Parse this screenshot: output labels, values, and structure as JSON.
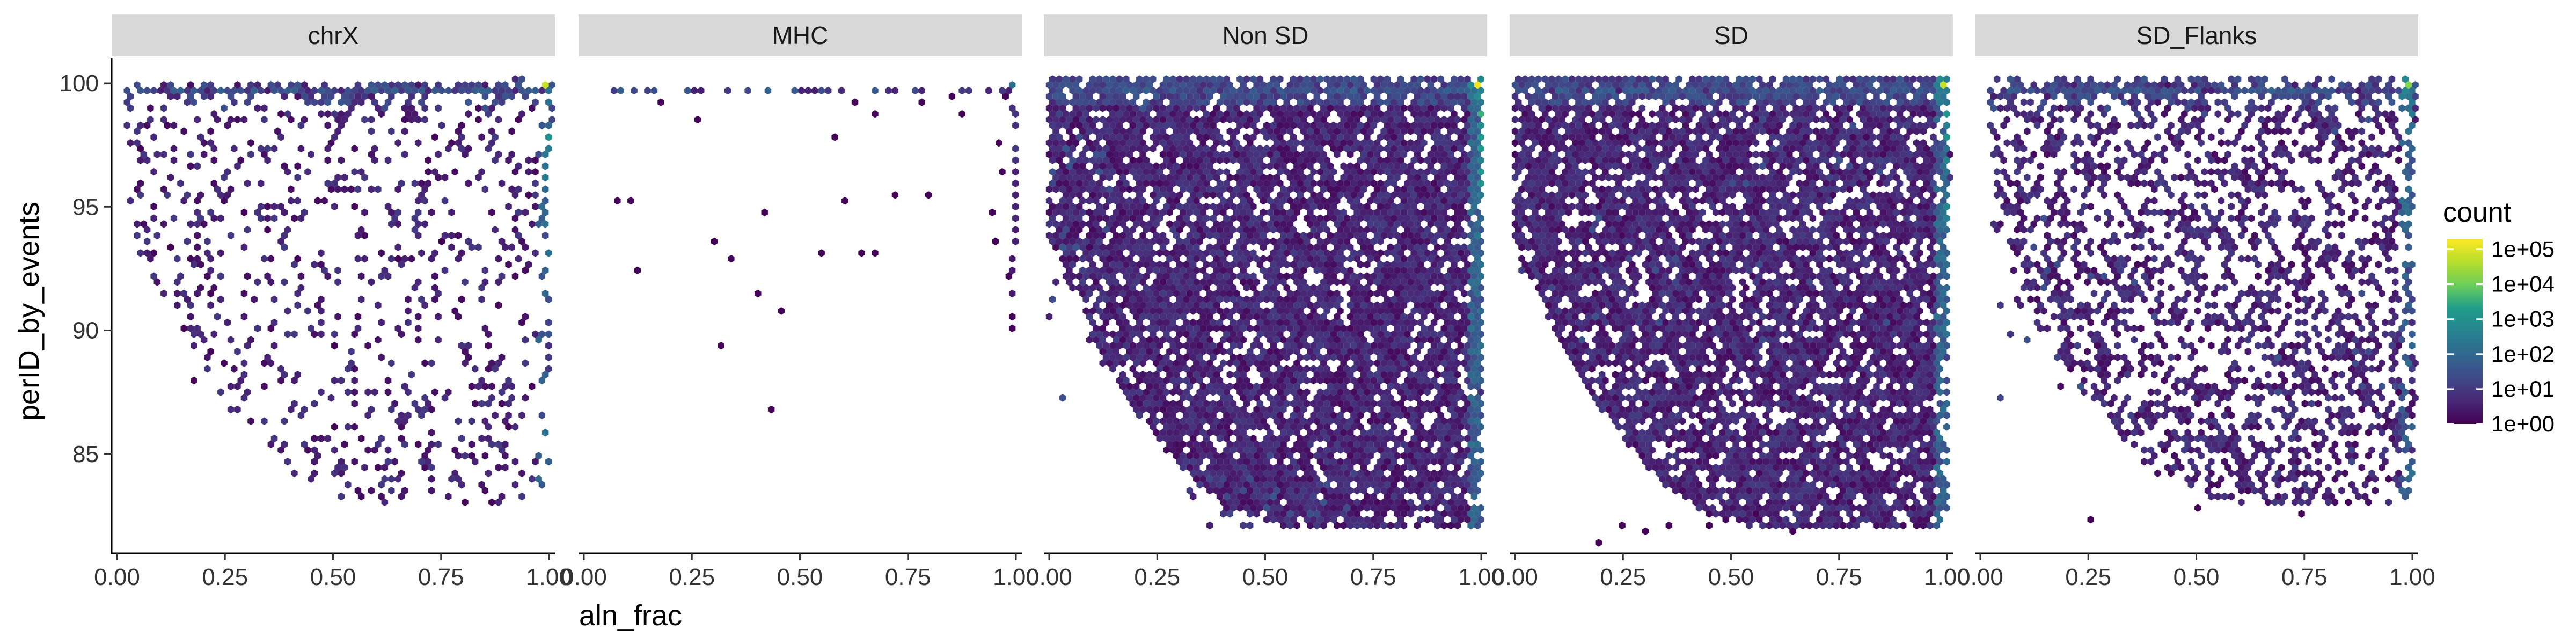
{
  "chart_data": {
    "type": "hexbin",
    "xlabel": "aln_frac",
    "ylabel": "perID_by_events",
    "xlim": [
      0,
      1
    ],
    "ylim": [
      81,
      101
    ],
    "x_ticks": [
      {
        "value": 0,
        "label": "0.00"
      },
      {
        "value": 0.25,
        "label": "0.25"
      },
      {
        "value": 0.5,
        "label": "0.50"
      },
      {
        "value": 0.75,
        "label": "0.75"
      },
      {
        "value": 1,
        "label": "1.00"
      }
    ],
    "y_ticks": [
      {
        "value": 85,
        "label": "85"
      },
      {
        "value": 90,
        "label": "90"
      },
      {
        "value": 95,
        "label": "95"
      },
      {
        "value": 100,
        "label": "100"
      }
    ],
    "facets": [
      {
        "label": "chrX",
        "x_min": 0.03,
        "y_bottom": 83,
        "y_top_left": 99,
        "y_top_right": 100,
        "density": 0.18,
        "clusters": [
          {
            "x": 0.6,
            "y": 99.6,
            "sx": 0.35,
            "sy": 0.5,
            "n": 120
          }
        ],
        "edge_log10": 3.5,
        "corner_log10": 4.8,
        "points": [
          [
            0.05,
            97.3
          ],
          [
            0.12,
            93.3
          ],
          [
            0.14,
            91.9
          ],
          [
            0.18,
            87.9
          ],
          [
            0.22,
            91.4
          ],
          [
            0.27,
            86.8
          ],
          [
            0.3,
            94.7
          ],
          [
            0.35,
            94.0
          ],
          [
            0.42,
            92.9
          ],
          [
            0.5,
            89.4
          ],
          [
            0.5,
            86.0
          ],
          [
            0.55,
            95.0
          ],
          [
            0.65,
            93.0
          ],
          [
            0.66,
            86.0
          ],
          [
            0.75,
            93.6
          ],
          [
            0.79,
            90.5
          ],
          [
            0.8,
            83.0
          ],
          [
            0.87,
            83.0
          ],
          [
            0.9,
            86.0
          ],
          [
            0.92,
            84.6
          ],
          [
            0.89,
            91.0
          ],
          [
            0.96,
            95.5
          ],
          [
            0.22,
            89.2
          ],
          [
            0.25,
            88.6
          ],
          [
            0.16,
            90.0
          ]
        ]
      },
      {
        "label": "MHC",
        "x_min": 0.08,
        "y_bottom": 86,
        "y_top_left": 95,
        "y_top_right": 100,
        "density": 0.0,
        "clusters": [],
        "edge_log10": 1.2,
        "corner_log10": 2.2,
        "points": [
          [
            0.08,
            95.2
          ],
          [
            0.11,
            95.2
          ],
          [
            0.12,
            92.5
          ],
          [
            0.18,
            99.2
          ],
          [
            0.26,
            98.5
          ],
          [
            0.3,
            93.5
          ],
          [
            0.32,
            89.3
          ],
          [
            0.34,
            92.9
          ],
          [
            0.4,
            91.6
          ],
          [
            0.42,
            94.8
          ],
          [
            0.43,
            86.7
          ],
          [
            0.45,
            90.7
          ],
          [
            0.55,
            93.2
          ],
          [
            0.58,
            97.8
          ],
          [
            0.6,
            95.3
          ],
          [
            0.62,
            99.2
          ],
          [
            0.64,
            93.2
          ],
          [
            0.68,
            98.8
          ],
          [
            0.68,
            93.2
          ],
          [
            0.72,
            95.5
          ],
          [
            0.78,
            99.2
          ],
          [
            0.8,
            95.5
          ],
          [
            0.85,
            99.5
          ],
          [
            0.88,
            98.8
          ],
          [
            0.94,
            94.8
          ],
          [
            0.96,
            93.5
          ],
          [
            0.98,
            92.2
          ],
          [
            0.99,
            90.6
          ],
          [
            0.99,
            90.0
          ],
          [
            0.96,
            97.5
          ],
          [
            0.97,
            96.5
          ],
          [
            0.98,
            99.5
          ]
        ]
      },
      {
        "label": "Non SD",
        "x_min": 0.0,
        "y_bottom": 82,
        "y_top_left": 100,
        "y_top_right": 100,
        "density": 0.82,
        "clusters": [
          {
            "x": 0.55,
            "y": 83.3,
            "sx": 0.1,
            "sy": 0.8,
            "n": 60
          },
          {
            "x": 0.06,
            "y": 96,
            "sx": 0.05,
            "sy": 3,
            "n": 50
          }
        ],
        "edge_log10": 4.0,
        "corner_log10": 5.2,
        "points": []
      },
      {
        "label": "SD",
        "x_min": 0.0,
        "y_bottom": 82,
        "y_top_left": 100,
        "y_top_right": 100,
        "density": 0.8,
        "clusters": [
          {
            "x": 0.35,
            "y": 92,
            "sx": 0.2,
            "sy": 2,
            "n": 60
          },
          {
            "x": 0.75,
            "y": 97,
            "sx": 0.2,
            "sy": 1,
            "n": 50
          }
        ],
        "edge_log10": 3.8,
        "corner_log10": 4.8,
        "points": [
          [
            0.2,
            81.5
          ],
          [
            0.25,
            82.0
          ],
          [
            0.3,
            81.8
          ],
          [
            0.35,
            82.2
          ],
          [
            0.45,
            82.0
          ],
          [
            0.55,
            82.5
          ],
          [
            0.65,
            81.8
          ]
        ]
      },
      {
        "label": "SD_Flanks",
        "x_min": 0.03,
        "y_bottom": 83,
        "y_top_left": 100,
        "y_top_right": 100,
        "density": 0.42,
        "clusters": [
          {
            "x": 0.6,
            "y": 99.5,
            "sx": 0.35,
            "sy": 0.6,
            "n": 150
          },
          {
            "x": 0.9,
            "y": 88,
            "sx": 0.12,
            "sy": 1.5,
            "n": 60
          },
          {
            "x": 0.2,
            "y": 91,
            "sx": 0.1,
            "sy": 2,
            "n": 50
          }
        ],
        "edge_log10": 3.0,
        "corner_log10": 4.2,
        "points": [
          [
            0.25,
            82.3
          ],
          [
            0.5,
            82.8
          ],
          [
            0.62,
            83.5
          ],
          [
            0.75,
            82.5
          ],
          [
            0.85,
            83.0
          ],
          [
            0.98,
            83.5
          ]
        ]
      }
    ],
    "legend": {
      "title": "count",
      "position": "right",
      "scale": "log10",
      "breaks": [
        0,
        1,
        2,
        3,
        4,
        5
      ],
      "labels": [
        "1e+00",
        "1e+01",
        "1e+02",
        "1e+03",
        "1e+04",
        "1e+05"
      ],
      "max_log10": 5.3
    },
    "colors": [
      "#440154",
      "#482777",
      "#3f4a8a",
      "#31678e",
      "#26838f",
      "#1f9d8a",
      "#6cce5a",
      "#b6de2b",
      "#fee825"
    ]
  }
}
